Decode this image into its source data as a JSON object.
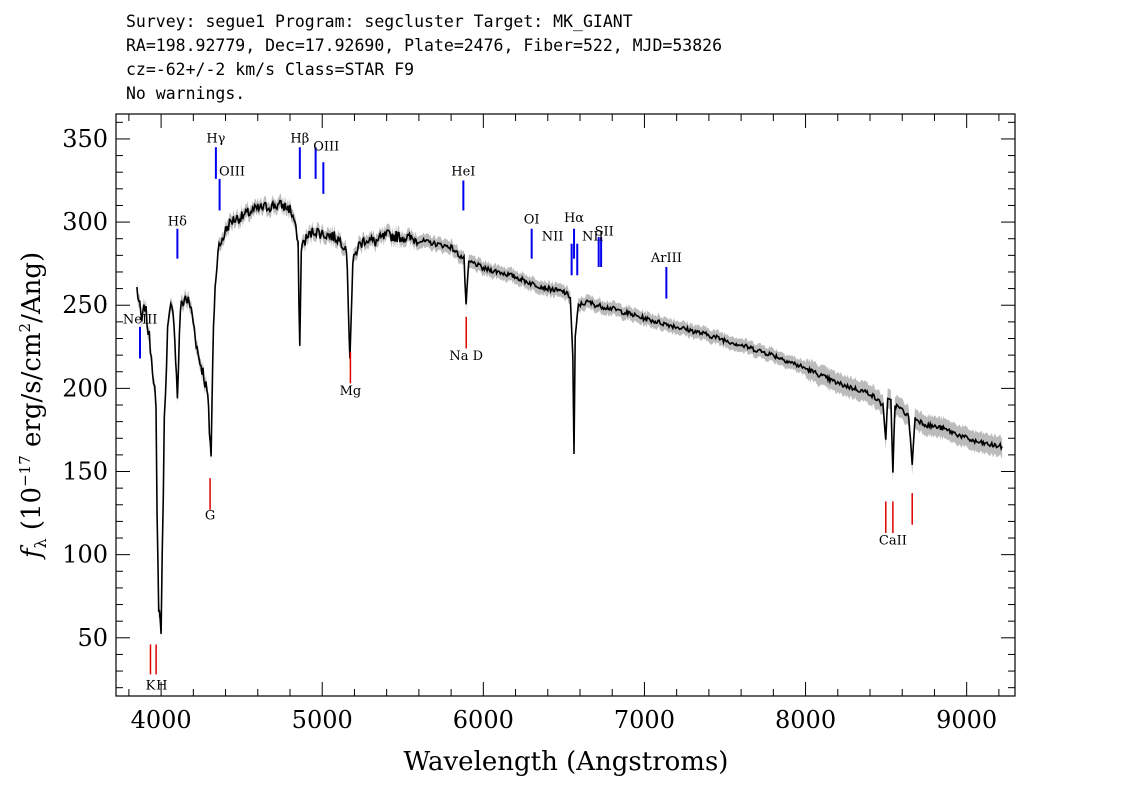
{
  "header": {
    "line1": "Survey: segue1 Program: segcluster Target: MK_GIANT",
    "line2": "RA=198.92779, Dec=17.92690, Plate=2476, Fiber=522, MJD=53826",
    "line3": "cz=-62+/-2 km/s Class=STAR F9",
    "line4": "No warnings."
  },
  "chart_data": {
    "type": "line",
    "xlabel": "Wavelength (Angstroms)",
    "ylabel": "f_λ (10^-17 erg/s/cm^2/Ang)",
    "xlim": [
      3720,
      9300
    ],
    "ylim": [
      15,
      365
    ],
    "x_ticks": [
      4000,
      5000,
      6000,
      7000,
      8000,
      9000
    ],
    "y_ticks": [
      50,
      100,
      150,
      200,
      250,
      300,
      350
    ],
    "series": [
      {
        "color": "#000000",
        "error_color": "#bbbbbb",
        "x": [
          3850,
          3880,
          3900,
          3920,
          3940,
          3960,
          3968,
          3975,
          3985,
          4000,
          4020,
          4040,
          4060,
          4080,
          4101,
          4120,
          4150,
          4180,
          4200,
          4230,
          4260,
          4290,
          4300,
          4310,
          4325,
          4340,
          4360,
          4380,
          4400,
          4430,
          4460,
          4500,
          4550,
          4600,
          4650,
          4700,
          4750,
          4800,
          4830,
          4850,
          4861,
          4870,
          4900,
          4950,
          5000,
          5050,
          5100,
          5150,
          5172,
          5190,
          5220,
          5270,
          5330,
          5400,
          5500,
          5600,
          5700,
          5800,
          5850,
          5880,
          5893,
          5910,
          5950,
          6000,
          6100,
          6200,
          6300,
          6400,
          6500,
          6540,
          6555,
          6563,
          6570,
          6590,
          6650,
          6700,
          6800,
          7000,
          7200,
          7400,
          7600,
          7800,
          8000,
          8200,
          8400,
          8480,
          8498,
          8510,
          8530,
          8542,
          8555,
          8600,
          8640,
          8662,
          8680,
          8750,
          8850,
          8950,
          9050,
          9150,
          9220
        ],
        "y": [
          260,
          240,
          250,
          235,
          220,
          200,
          185,
          120,
          70,
          55,
          180,
          235,
          248,
          242,
          195,
          248,
          255,
          250,
          240,
          220,
          210,
          195,
          175,
          160,
          240,
          270,
          285,
          290,
          295,
          300,
          302,
          303,
          306,
          308,
          309,
          310,
          310,
          308,
          300,
          285,
          225,
          285,
          290,
          295,
          293,
          292,
          290,
          285,
          220,
          275,
          285,
          290,
          288,
          292,
          291,
          289,
          287,
          285,
          280,
          278,
          250,
          276,
          275,
          272,
          270,
          267,
          263,
          260,
          258,
          255,
          220,
          160,
          230,
          250,
          252,
          250,
          248,
          242,
          237,
          232,
          226,
          220,
          212,
          203,
          197,
          190,
          170,
          193,
          192,
          150,
          190,
          187,
          183,
          155,
          182,
          178,
          176,
          172,
          168,
          166,
          165
        ]
      }
    ],
    "emission_lines": [
      {
        "label": "NeIII",
        "x": 3869,
        "y_bottom": 218,
        "y_top": 237
      },
      {
        "label": "Hδ",
        "x": 4101,
        "y_bottom": 278,
        "y_top": 296
      },
      {
        "label": "Hγ",
        "x": 4340,
        "y_bottom": 326,
        "y_top": 345
      },
      {
        "label": "OIII",
        "x": 4363,
        "y_bottom": 307,
        "y_top": 326
      },
      {
        "label": "Hβ",
        "x": 4861,
        "y_bottom": 326,
        "y_top": 345
      },
      {
        "label": "OIII",
        "x": 4959,
        "y_bottom": 326,
        "y_top": 345
      },
      {
        "label": "OIII",
        "x": 5007,
        "y_bottom": 317,
        "y_top": 336
      },
      {
        "label": "HeI",
        "x": 5876,
        "y_bottom": 307,
        "y_top": 325
      },
      {
        "label": "OI",
        "x": 6300,
        "y_bottom": 278,
        "y_top": 296
      },
      {
        "label": "NII",
        "x": 6548,
        "y_bottom": 268,
        "y_top": 287
      },
      {
        "label": "Hα",
        "x": 6563,
        "y_bottom": 278,
        "y_top": 296
      },
      {
        "label": "NII",
        "x": 6583,
        "y_bottom": 268,
        "y_top": 287
      },
      {
        "label": "SII",
        "x": 6716,
        "y_bottom": 273,
        "y_top": 291
      },
      {
        "label": "SII",
        "x": 6731,
        "y_bottom": 273,
        "y_top": 291
      },
      {
        "label": "ArIII",
        "x": 7136,
        "y_bottom": 254,
        "y_top": 273
      }
    ],
    "absorption_lines": [
      {
        "label": "K",
        "x": 3934,
        "y_bottom": 28,
        "y_top": 46
      },
      {
        "label": "H",
        "x": 3969,
        "y_bottom": 28,
        "y_top": 46
      },
      {
        "label": "G",
        "x": 4304,
        "y_bottom": 127,
        "y_top": 146
      },
      {
        "label": "Mg",
        "x": 5175,
        "y_bottom": 203,
        "y_top": 222
      },
      {
        "label": "Na",
        "x": 5894,
        "y_bottom": 224,
        "y_top": 243
      },
      {
        "label": "CaII",
        "x": 8498,
        "y_bottom": 113,
        "y_top": 132
      },
      {
        "label": "CaII",
        "x": 8542,
        "y_bottom": 113,
        "y_top": 132
      },
      {
        "label": "CaII",
        "x": 8662,
        "y_bottom": 118,
        "y_top": 137
      }
    ],
    "text_labels": [
      {
        "text": "NeIII",
        "x": 3870,
        "y": 239
      },
      {
        "text": "Hδ",
        "x": 4101,
        "y": 298
      },
      {
        "text": "Hγ",
        "x": 4340,
        "y": 348
      },
      {
        "text": "OIII",
        "x": 4440,
        "y": 328
      },
      {
        "text": "Hβ",
        "x": 4861,
        "y": 348
      },
      {
        "text": "OIII",
        "x": 5025,
        "y": 343
      },
      {
        "text": "HeI",
        "x": 5876,
        "y": 328
      },
      {
        "text": "OI",
        "x": 6300,
        "y": 299
      },
      {
        "text": "NII",
        "x": 6430,
        "y": 289
      },
      {
        "text": "Hα",
        "x": 6563,
        "y": 300
      },
      {
        "text": "NII",
        "x": 6680,
        "y": 289
      },
      {
        "text": "SII",
        "x": 6750,
        "y": 292
      },
      {
        "text": "ArIII",
        "x": 7136,
        "y": 276
      },
      {
        "text": "K",
        "x": 3934,
        "y": 19
      },
      {
        "text": "H",
        "x": 4004,
        "y": 19
      },
      {
        "text": "G",
        "x": 4304,
        "y": 121
      },
      {
        "text": "Mg",
        "x": 5175,
        "y": 196
      },
      {
        "text": "Na  D",
        "x": 5894,
        "y": 217
      },
      {
        "text": "CaII",
        "x": 8542,
        "y": 106
      }
    ]
  }
}
